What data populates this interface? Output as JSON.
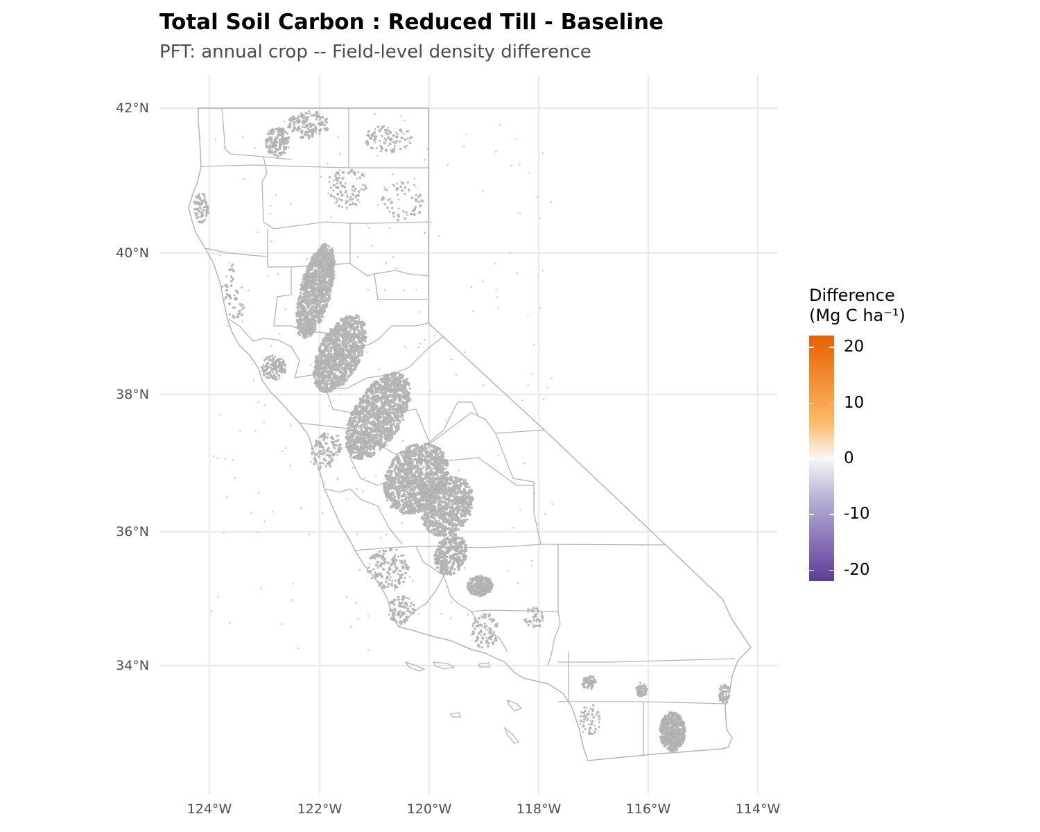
{
  "title": "Total Soil Carbon : Reduced Till - Baseline",
  "subtitle": "PFT: annual crop  -- Field-level density difference",
  "legend": {
    "title_line1": "Difference",
    "title_line2": "(Mg C ha⁻¹)",
    "ticks": [
      "20",
      "10",
      "0",
      "-10",
      "-20"
    ],
    "tick_values": [
      20,
      10,
      0,
      -10,
      -20
    ],
    "range": [
      -22,
      22
    ],
    "colors": {
      "high": "#e66101",
      "mid": "#f7f7f7",
      "low": "#5e3c99"
    }
  },
  "axes": {
    "lat_labels": [
      "42°N",
      "40°N",
      "38°N",
      "36°N",
      "34°N"
    ],
    "lat_values": [
      42,
      40,
      38,
      36,
      34
    ],
    "lon_labels": [
      "124°W",
      "122°W",
      "120°W",
      "118°W",
      "116°W",
      "114°W"
    ],
    "lon_values": [
      -124,
      -122,
      -120,
      -118,
      -116,
      -114
    ]
  },
  "map": {
    "region": "California",
    "boundary_color": "#b3b3b3",
    "field_color": "#bdbdbd",
    "grid_color": "#ebebeb"
  }
}
